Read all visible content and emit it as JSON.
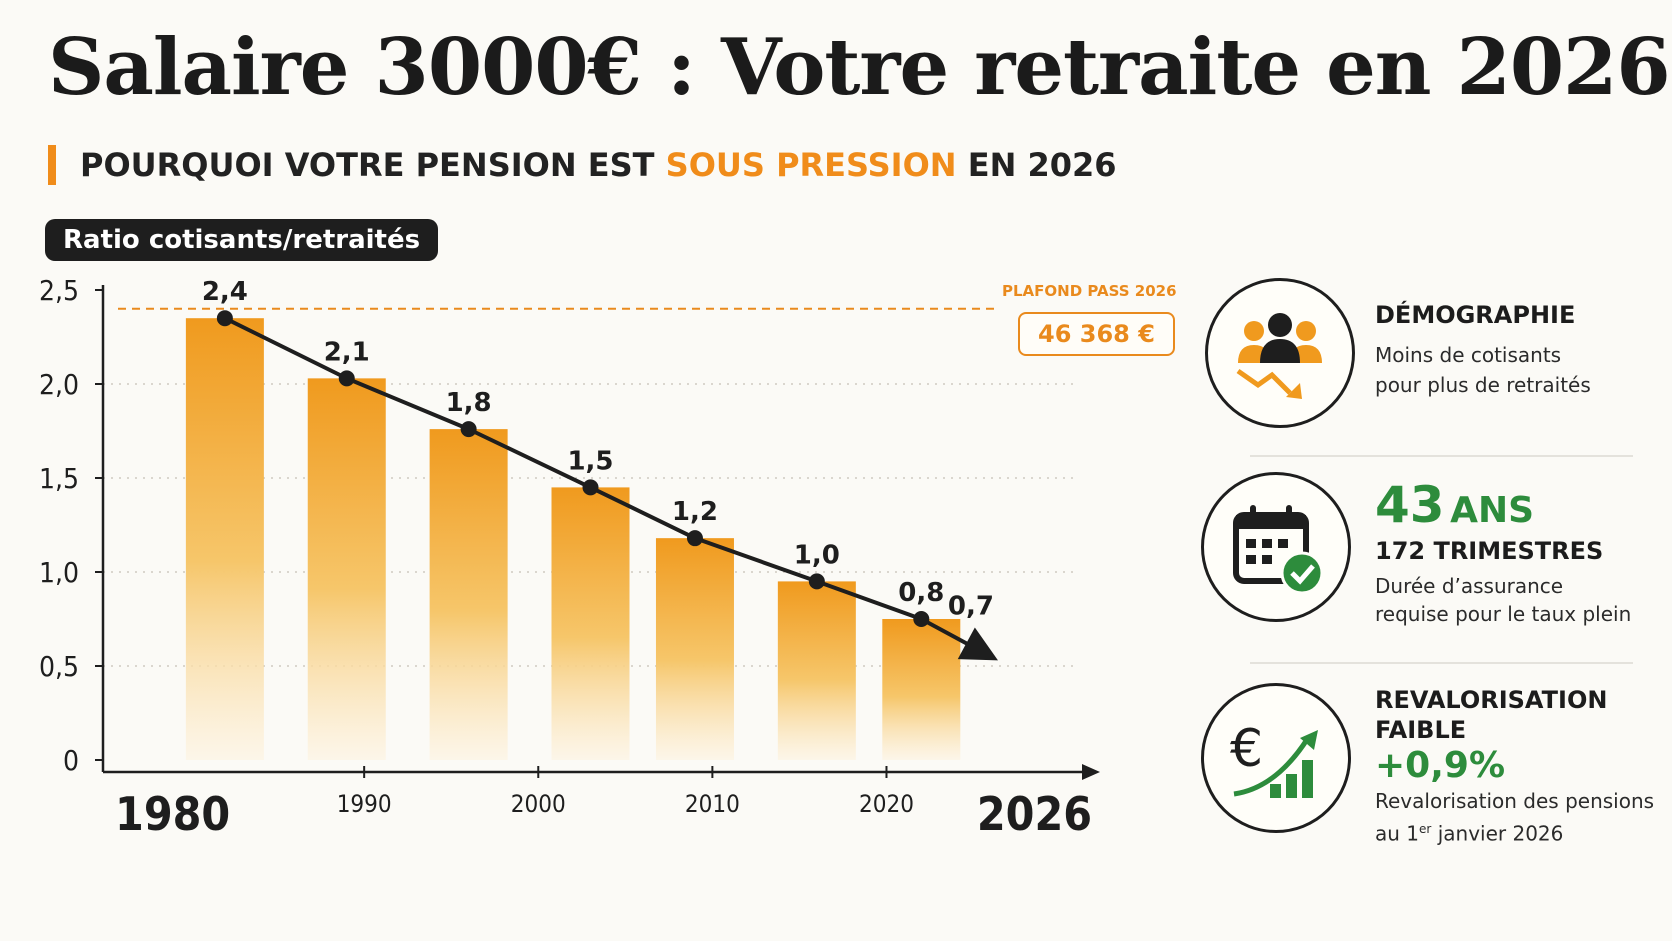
{
  "header": {
    "title": "Salaire 3000€ : Votre retraite en 2026",
    "subtitle_pre": "POURQUOI VOTRE PENSION EST ",
    "subtitle_highlight": "SOUS PRESSION",
    "subtitle_post": " EN 2026"
  },
  "chart_label": "Ratio cotisants/retraités",
  "reference": {
    "label": "PLAFOND PASS 2026",
    "value": "46 368 €"
  },
  "chart_data": {
    "type": "bar",
    "ylabel": "Ratio cotisants/retraités",
    "ylim": [
      0,
      2.5
    ],
    "y_ticks": [
      "0",
      "0,5",
      "1,0",
      "1,5",
      "2,0",
      "2,5"
    ],
    "x_ticks": [
      "1980",
      "1990",
      "2000",
      "2010",
      "2020",
      "2026"
    ],
    "grid": true,
    "reference_line": 2.4,
    "categories": [
      "1982",
      "1989",
      "1996",
      "2003",
      "2009",
      "2016",
      "2022",
      "2026"
    ],
    "values": [
      2.4,
      2.1,
      1.8,
      1.5,
      1.2,
      1.0,
      0.8,
      0.7
    ],
    "value_labels": [
      "2,4",
      "2,1",
      "1,8",
      "1,5",
      "1,2",
      "1,0",
      "0,8",
      "0,7"
    ],
    "bar_values": [
      2.35,
      2.03,
      1.76,
      1.45,
      1.18,
      0.95,
      0.75,
      null
    ],
    "trend": [
      2.35,
      2.03,
      1.76,
      1.45,
      1.18,
      0.95,
      0.75,
      0.55
    ]
  },
  "panels": [
    {
      "icon": "people-decline-icon",
      "heading": "DÉMOGRAPHIE",
      "body1": "Moins de cotisants",
      "body2": "pour plus de retraités"
    },
    {
      "icon": "calendar-check-icon",
      "big_num": "43",
      "big_unit": "ANS",
      "sub": "172 TRIMESTRES",
      "body1": "Durée d’assurance",
      "body2": "requise pour le taux plein"
    },
    {
      "icon": "euro-growth-icon",
      "heading1": "REVALORISATION",
      "heading2": "FAIBLE",
      "rate": "+0,9%",
      "body1": "Revalorisation des pensions",
      "body2_pre": "au 1",
      "body2_sup": "er",
      "body2_post": " janvier 2026"
    }
  ],
  "colors": {
    "accent": "#f08c1a",
    "green": "#2d8c3c",
    "dark": "#1e1e1e"
  }
}
